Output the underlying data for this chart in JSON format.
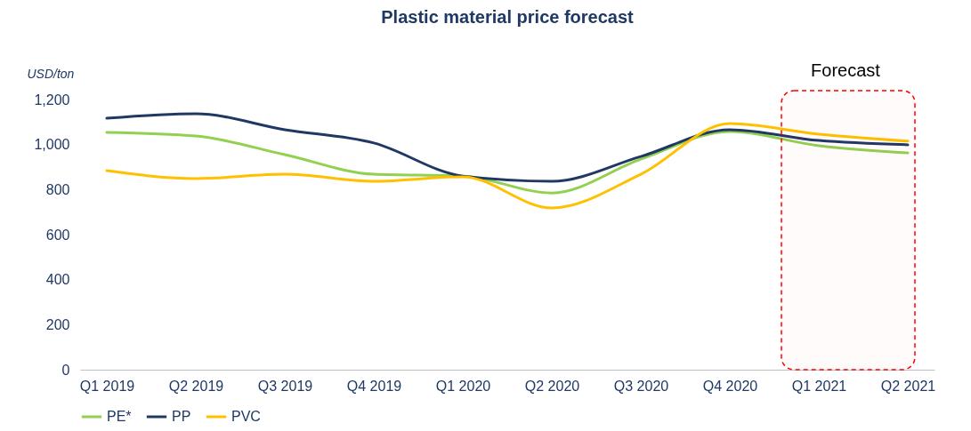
{
  "chart_data": {
    "type": "line",
    "title": "Plastic material price forecast",
    "ylabel": "USD/ton",
    "categories": [
      "Q1 2019",
      "Q2 2019",
      "Q3 2019",
      "Q4 2019",
      "Q1 2020",
      "Q2 2020",
      "Q3 2020",
      "Q4 2020",
      "Q1 2021",
      "Q2 2021"
    ],
    "series": [
      {
        "name": "PE*",
        "color": "#92d050",
        "values": [
          1054,
          1038,
          955,
          868,
          860,
          785,
          935,
          1058,
          995,
          963
        ]
      },
      {
        "name": "PP",
        "color": "#1f3864",
        "values": [
          1117,
          1137,
          1066,
          1007,
          860,
          837,
          947,
          1066,
          1018,
          999
        ]
      },
      {
        "name": "PVC",
        "color": "#ffc000",
        "values": [
          884,
          849,
          868,
          837,
          857,
          718,
          868,
          1093,
          1046,
          1015
        ]
      }
    ],
    "ylim": [
      0,
      1200
    ],
    "yticks": [
      0,
      200,
      400,
      600,
      800,
      {
        "value": 1000,
        "label": "1,000"
      },
      {
        "value": 1200,
        "label": "1,200"
      }
    ],
    "bands": [
      {
        "axis": "x",
        "from": "Q1 2021",
        "to": "Q2 2021",
        "label": "Forecast",
        "color": "#ff0000"
      }
    ],
    "grid": false,
    "legend": "bottom",
    "marker": "none",
    "line_style": "solid"
  }
}
